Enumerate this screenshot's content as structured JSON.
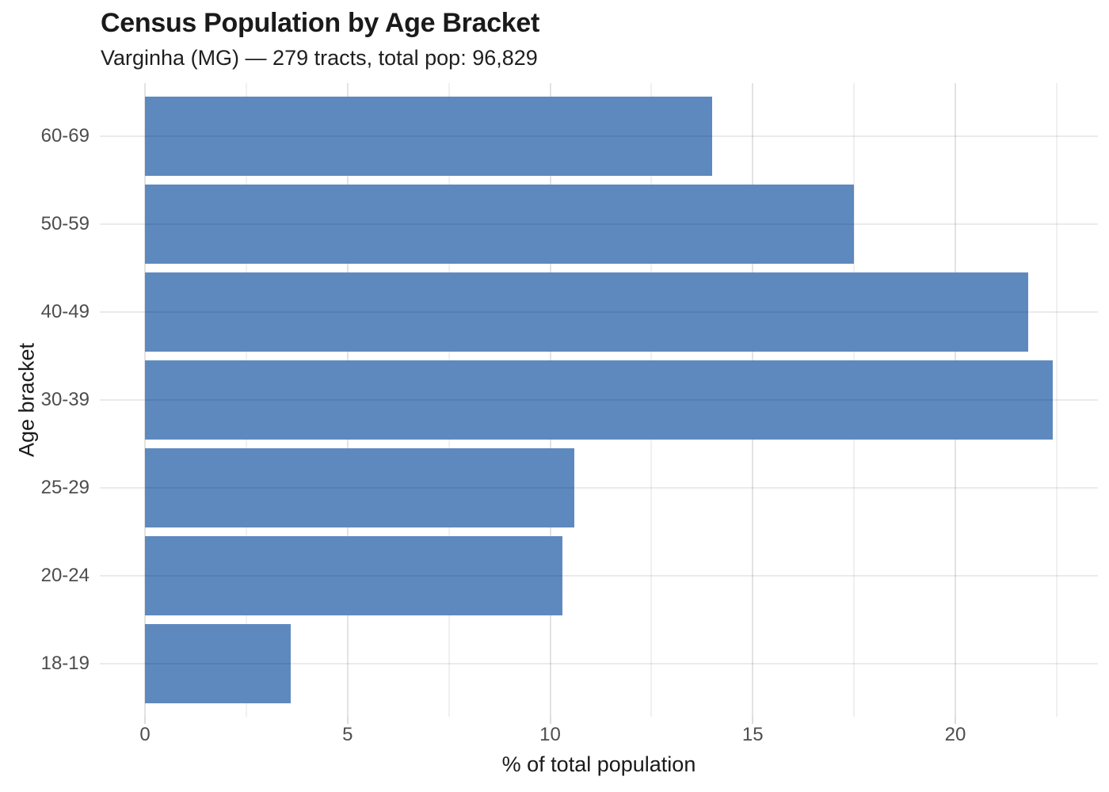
{
  "chart_data": {
    "type": "bar",
    "orientation": "horizontal",
    "title": "Census Population by Age Bracket",
    "subtitle": "Varginha (MG) — 279 tracts, total pop: 96,829",
    "xlabel": "% of total population",
    "ylabel": "Age bracket",
    "categories": [
      "60-69",
      "50-59",
      "40-49",
      "30-39",
      "25-29",
      "20-24",
      "18-19"
    ],
    "values": [
      14.0,
      17.5,
      21.8,
      22.4,
      10.6,
      10.3,
      3.6
    ],
    "xlim": [
      0,
      23.5
    ],
    "x_major_ticks": [
      0,
      5,
      10,
      15,
      20
    ],
    "x_minor_gridlines": [
      2.5,
      7.5,
      12.5,
      17.5,
      22.5
    ],
    "grid": true,
    "legend": false
  },
  "colors": {
    "bar": "#5e89bf",
    "grid_major": "#e3e3e3",
    "grid_minor": "#f0f0f0",
    "grid_overlay": "rgba(0,0,0,0.08)",
    "tick_mark": "#dcdcdc",
    "tick_label": "#4d4d4d",
    "axis_title": "#1a1a1a",
    "title": "#1a1a1a",
    "subtitle": "#1f1f1f",
    "background": "#ffffff"
  }
}
